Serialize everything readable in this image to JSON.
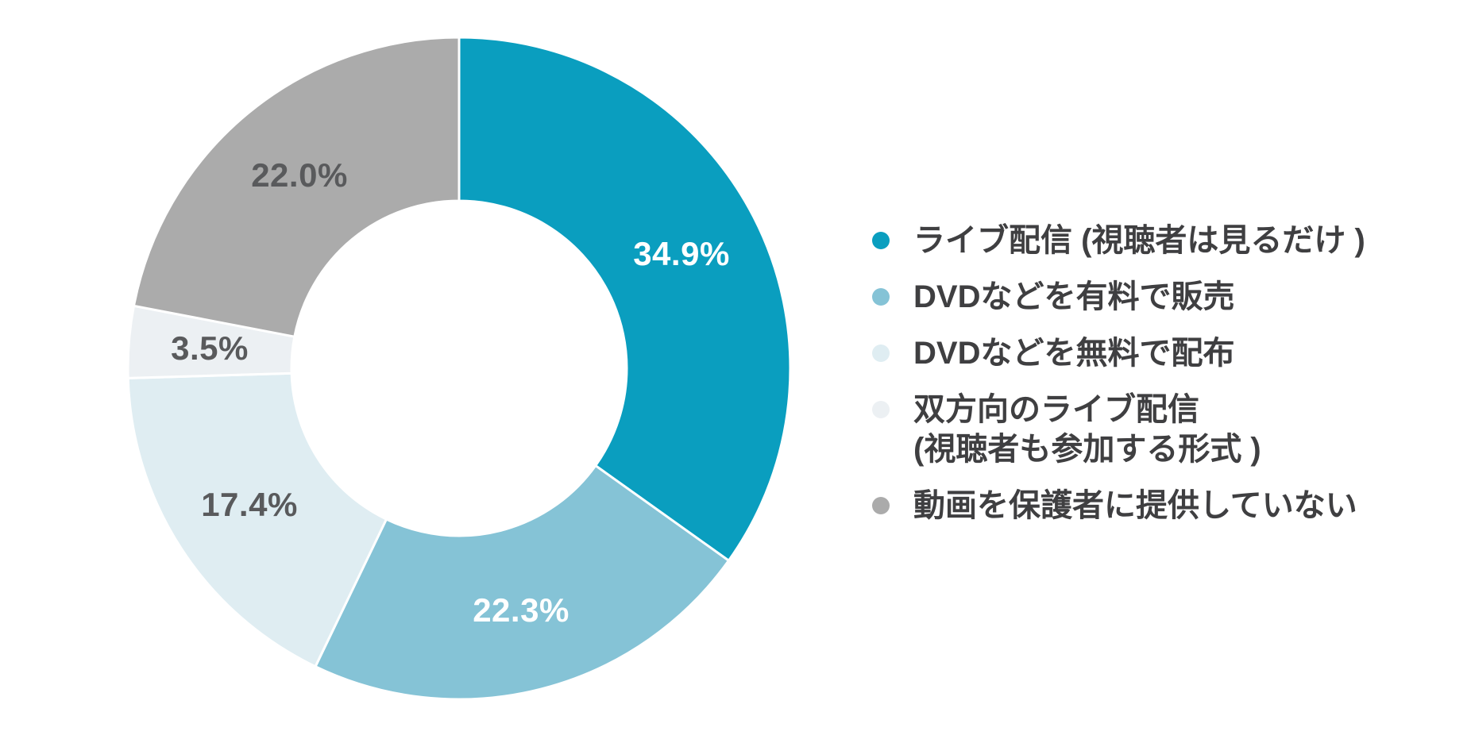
{
  "chart_data": {
    "type": "pie",
    "subtype": "donut",
    "title": "",
    "direction": "clockwise",
    "start_angle_deg": 0,
    "donut_hole_ratio": 0.51,
    "legend_position": "right",
    "slices": [
      {
        "label": "ライブ配信 (視聴者は見るだけ )",
        "value": 34.9,
        "display": "34.9%",
        "color": "#0A9EBF",
        "label_color": "#FFFFFF"
      },
      {
        "label": "DVDなどを有料で販売",
        "value": 22.3,
        "display": "22.3%",
        "color": "#85C3D6",
        "label_color": "#FFFFFF"
      },
      {
        "label": "DVDなどを無料で配布",
        "value": 17.4,
        "display": "17.4%",
        "color": "#DFEDF2",
        "label_color": "#595A5C"
      },
      {
        "label": "双方向のライブ配信 (視聴者も参加する形式 )",
        "value": 3.5,
        "display": "3.5%",
        "color": "#ECF0F3",
        "label_color": "#595A5C"
      },
      {
        "label": "動画を保護者に提供していない",
        "value": 22.0,
        "display": "22.0%",
        "color": "#ABABAB",
        "label_color": "#595A5C"
      }
    ]
  },
  "legend": {
    "text_color": "#3F3F41",
    "items": [
      {
        "lines": [
          "ライブ配信 (視聴者は見るだけ )"
        ],
        "color": "#0A9EBF"
      },
      {
        "lines": [
          "DVDなどを有料で販売"
        ],
        "color": "#85C3D6"
      },
      {
        "lines": [
          "DVDなどを無料で配布"
        ],
        "color": "#DFEDF2"
      },
      {
        "lines": [
          "双方向のライブ配信",
          "(視聴者も参加する形式 )"
        ],
        "color": "#ECF0F3"
      },
      {
        "lines": [
          "動画を保護者に提供していない"
        ],
        "color": "#ABABAB"
      }
    ]
  }
}
